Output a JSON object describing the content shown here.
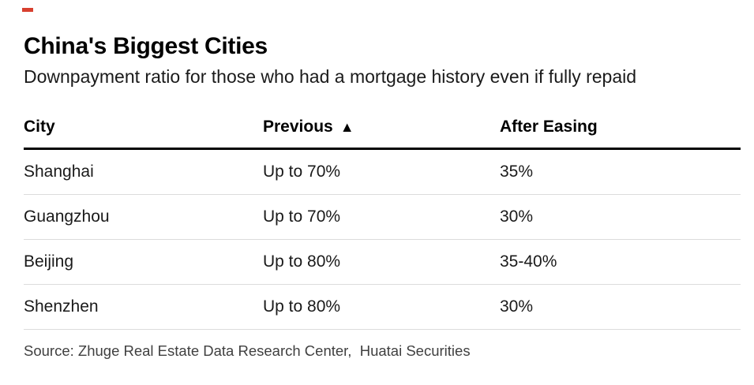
{
  "colors": {
    "accent_red": "#d8402f",
    "header_rule": "#000000",
    "row_separator": "#dcdcdc",
    "text_primary": "#1a1a1a",
    "source_text": "#404040"
  },
  "chart_data": {
    "type": "table",
    "title": "China's Biggest Cities",
    "subtitle": "Downpayment ratio for those who had a mortgage history even if fully repaid",
    "columns": [
      "City",
      "Previous",
      "After Easing"
    ],
    "sort_indicator": "▲",
    "sort_column": "Previous",
    "rows": [
      [
        "Shanghai",
        "Up to 70%",
        "35%"
      ],
      [
        "Guangzhou",
        "Up to 70%",
        "30%"
      ],
      [
        "Beijing",
        "Up to 80%",
        "35-40%"
      ],
      [
        "Shenzhen",
        "Up to 80%",
        "30%"
      ]
    ],
    "source": "Source: Zhuge Real Estate Data Research Center,  Huatai Securities"
  }
}
